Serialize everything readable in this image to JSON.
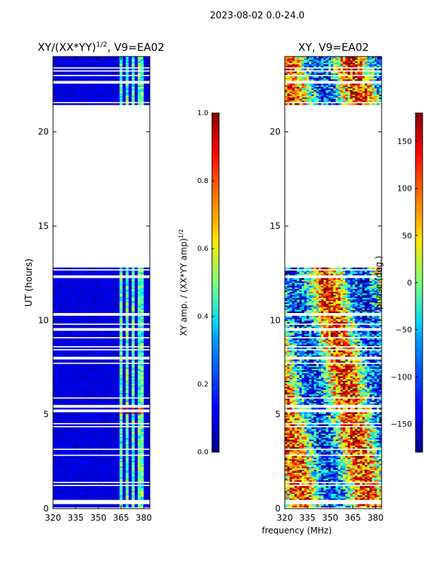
{
  "suptitle": "2023-08-02 0.0-24.0",
  "shared_xlabel": "frequency (MHz)",
  "chart_data": [
    {
      "type": "heatmap",
      "title": "XY/(XX*YY)^1/2, V9=EA02",
      "title_main": "XY/(XX*YY)",
      "title_exp": "1/2",
      "title_rest": ", V9=EA02",
      "xlabel": "",
      "ylabel": "UT (hours)",
      "xlim": [
        320,
        384
      ],
      "ylim": [
        0,
        24
      ],
      "xticks": [
        320,
        335,
        350,
        365,
        380
      ],
      "yticks": [
        0,
        5,
        10,
        15,
        20
      ],
      "channel_bands_mhz": [
        [
          364,
          367
        ],
        [
          368,
          371
        ],
        [
          373,
          375
        ],
        [
          377,
          380
        ]
      ],
      "data_present_hours": [
        [
          0,
          12.8
        ],
        [
          21.4,
          24
        ]
      ],
      "bright_band_hours": [
        5.0,
        5.5
      ],
      "colorbar": {
        "label": "XY amp. / (XX*YY amp)^1/2",
        "label_main": "XY amp. / (XX*YY amp)",
        "label_exp": "1/2",
        "range": [
          0.0,
          1.0
        ],
        "ticks": [
          "0.0",
          "0.2",
          "0.4",
          "0.6",
          "0.8",
          "1.0"
        ]
      }
    },
    {
      "type": "heatmap",
      "title": "XY, V9=EA02",
      "xlabel": "frequency (MHz)",
      "ylabel": "",
      "xlim": [
        320,
        384
      ],
      "ylim": [
        0,
        24
      ],
      "xticks": [
        320,
        335,
        350,
        365,
        380
      ],
      "yticks": [
        0,
        5,
        10,
        15,
        20
      ],
      "data_present_hours": [
        [
          0,
          12.8
        ],
        [
          21.4,
          24
        ]
      ],
      "colorbar": {
        "label": "phase (deg.)",
        "range": [
          -180,
          180
        ],
        "ticks": [
          "−150",
          "−100",
          "−50",
          "0",
          "50",
          "100",
          "150"
        ],
        "tick_values": [
          -150,
          -100,
          -50,
          0,
          50,
          100,
          150
        ]
      }
    }
  ]
}
